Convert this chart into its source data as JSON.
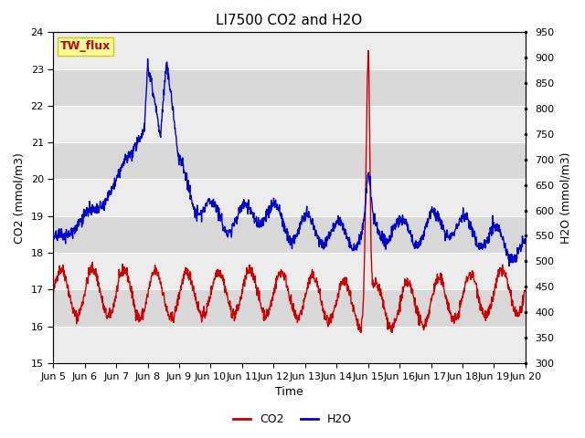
{
  "title": "LI7500 CO2 and H2O",
  "xlabel": "Time",
  "ylabel_left": "CO2 (mmol/m3)",
  "ylabel_right": "H2O (mmol/m3)",
  "co2_ylim": [
    15.0,
    24.0
  ],
  "h2o_ylim": [
    300,
    950
  ],
  "xtick_labels": [
    "Jun 5",
    "Jun 6",
    "Jun 7",
    "Jun 8",
    "Jun 9",
    "Jun 10",
    "Jun 11",
    "Jun 12",
    "Jun 13",
    "Jun 14",
    "Jun 15",
    "Jun 16",
    "Jun 17",
    "Jun 18",
    "Jun 19",
    "Jun 20"
  ],
  "co2_color": "#cc0000",
  "h2o_color": "#0000cc",
  "background_color": "#ffffff",
  "band_light": "#ececec",
  "band_dark": "#d8d8d8",
  "grid_color": "#ffffff",
  "legend_label_co2": "CO2",
  "legend_label_h2o": "H2O",
  "annotation_text": "TW_flux",
  "annotation_bg": "#ffff99",
  "annotation_border": "#cccc00",
  "annotation_text_color": "#cc0000",
  "title_fontsize": 11,
  "label_fontsize": 9,
  "tick_fontsize": 8,
  "legend_fontsize": 9,
  "linewidth": 1.0
}
